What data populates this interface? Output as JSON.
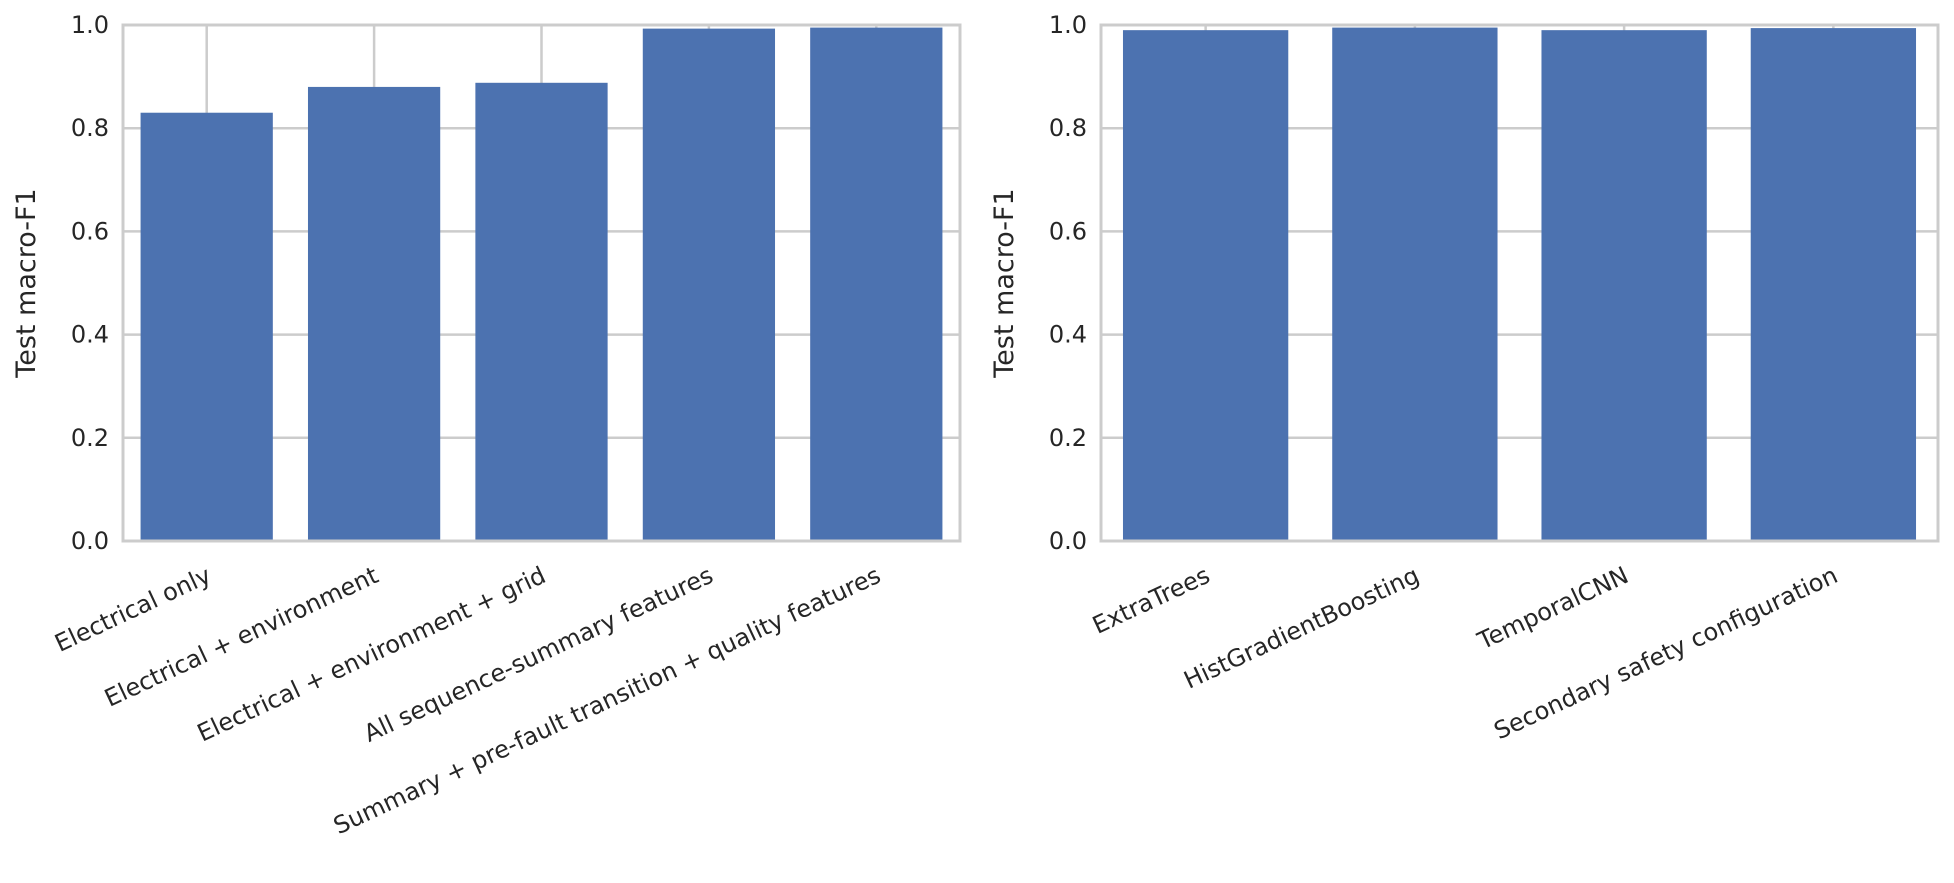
{
  "colors": {
    "bar": "#4c72b0",
    "grid": "#cccccc",
    "spine": "#cccccc",
    "text": "#262626"
  },
  "chart_data": [
    {
      "type": "bar",
      "title": "",
      "xlabel": "",
      "ylabel": "Test macro-F1",
      "ylim": [
        0,
        1.0
      ],
      "yticks": [
        "0.0",
        "0.2",
        "0.4",
        "0.6",
        "0.8",
        "1.0"
      ],
      "grid": true,
      "categories": [
        "Electrical only",
        "Electrical + environment",
        "Electrical + environment + grid",
        "All sequence-summary features",
        "Summary + pre-fault transition + quality features"
      ],
      "values": [
        0.83,
        0.88,
        0.888,
        0.993,
        0.995
      ]
    },
    {
      "type": "bar",
      "title": "",
      "xlabel": "",
      "ylabel": "Test macro-F1",
      "ylim": [
        0,
        1.0
      ],
      "yticks": [
        "0.0",
        "0.2",
        "0.4",
        "0.6",
        "0.8",
        "1.0"
      ],
      "grid": true,
      "categories": [
        "ExtraTrees",
        "HistGradientBoosting",
        "TemporalCNN",
        "Secondary safety configuration"
      ],
      "values": [
        0.99,
        0.995,
        0.99,
        0.994
      ]
    }
  ]
}
